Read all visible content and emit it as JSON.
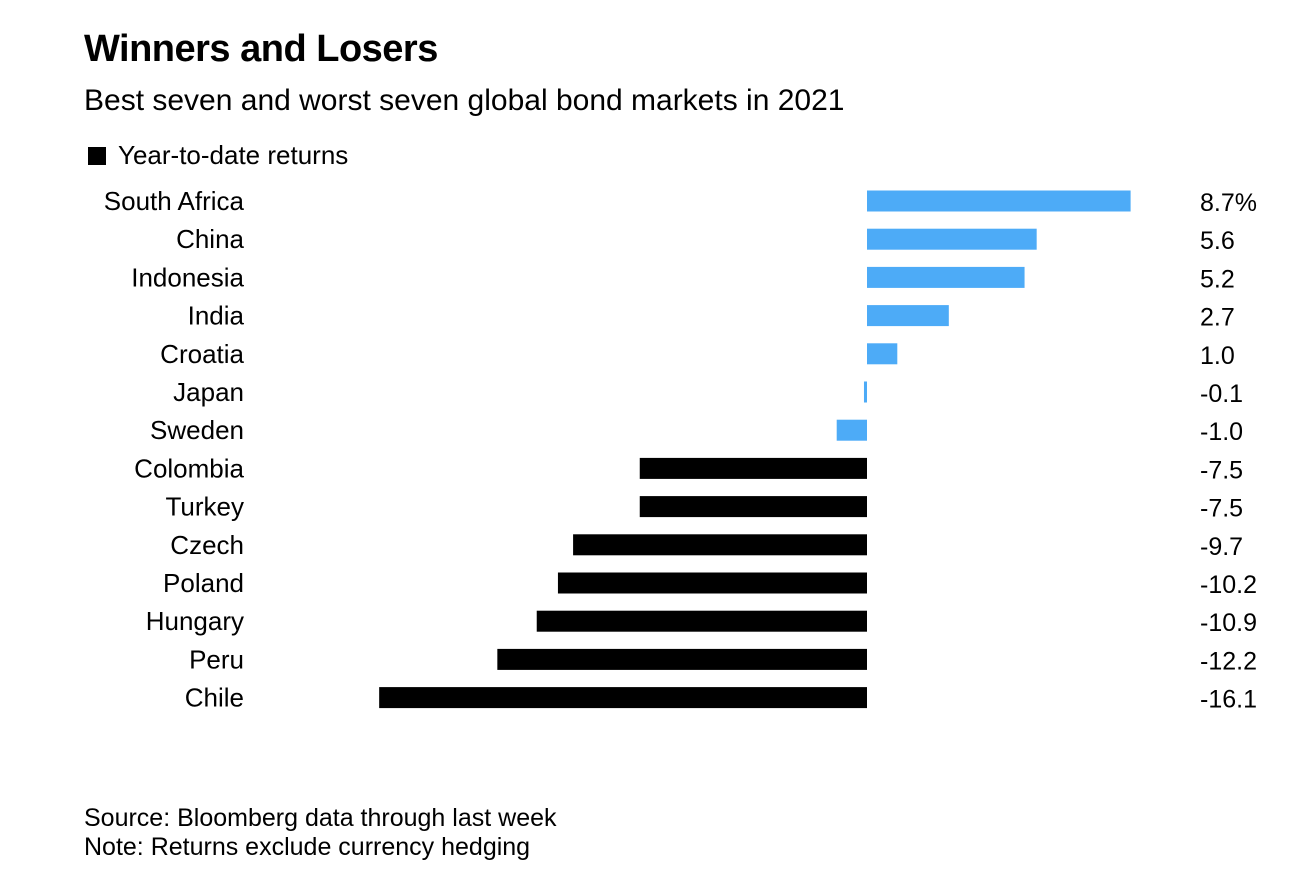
{
  "title": "Winners and Losers",
  "subtitle": "Best seven and worst seven global bond markets in 2021",
  "legend": {
    "label": "Year-to-date returns",
    "color": "#000000"
  },
  "colors": {
    "positive": "#4dabf7",
    "negative": "#000000",
    "top_group_negative": "#4dabf7"
  },
  "chart_data": {
    "type": "bar",
    "orientation": "horizontal",
    "categories": [
      "South Africa",
      "China",
      "Indonesia",
      "India",
      "Croatia",
      "Japan",
      "Sweden",
      "Colombia",
      "Turkey",
      "Czech",
      "Poland",
      "Hungary",
      "Peru",
      "Chile"
    ],
    "values": [
      8.7,
      5.6,
      5.2,
      2.7,
      1.0,
      -0.1,
      -1.0,
      -7.5,
      -7.5,
      -9.7,
      -10.2,
      -10.9,
      -12.2,
      -16.1
    ],
    "value_labels": [
      "8.7%",
      "5.6",
      "5.2",
      "2.7",
      "1.0",
      "-0.1",
      "-1.0",
      "-7.5",
      "-7.5",
      "-9.7",
      "-10.2",
      "-10.9",
      "-12.2",
      "-16.1"
    ],
    "groups": [
      "best",
      "best",
      "best",
      "best",
      "best",
      "best",
      "best",
      "worst",
      "worst",
      "worst",
      "worst",
      "worst",
      "worst",
      "worst"
    ],
    "series": [
      {
        "name": "Year-to-date returns"
      }
    ],
    "xlim": [
      -16.1,
      8.7
    ],
    "grid": false,
    "legend_position": "top-left"
  },
  "footer": {
    "source": "Source: Bloomberg data through last week",
    "note": "Note: Returns exclude currency hedging"
  }
}
